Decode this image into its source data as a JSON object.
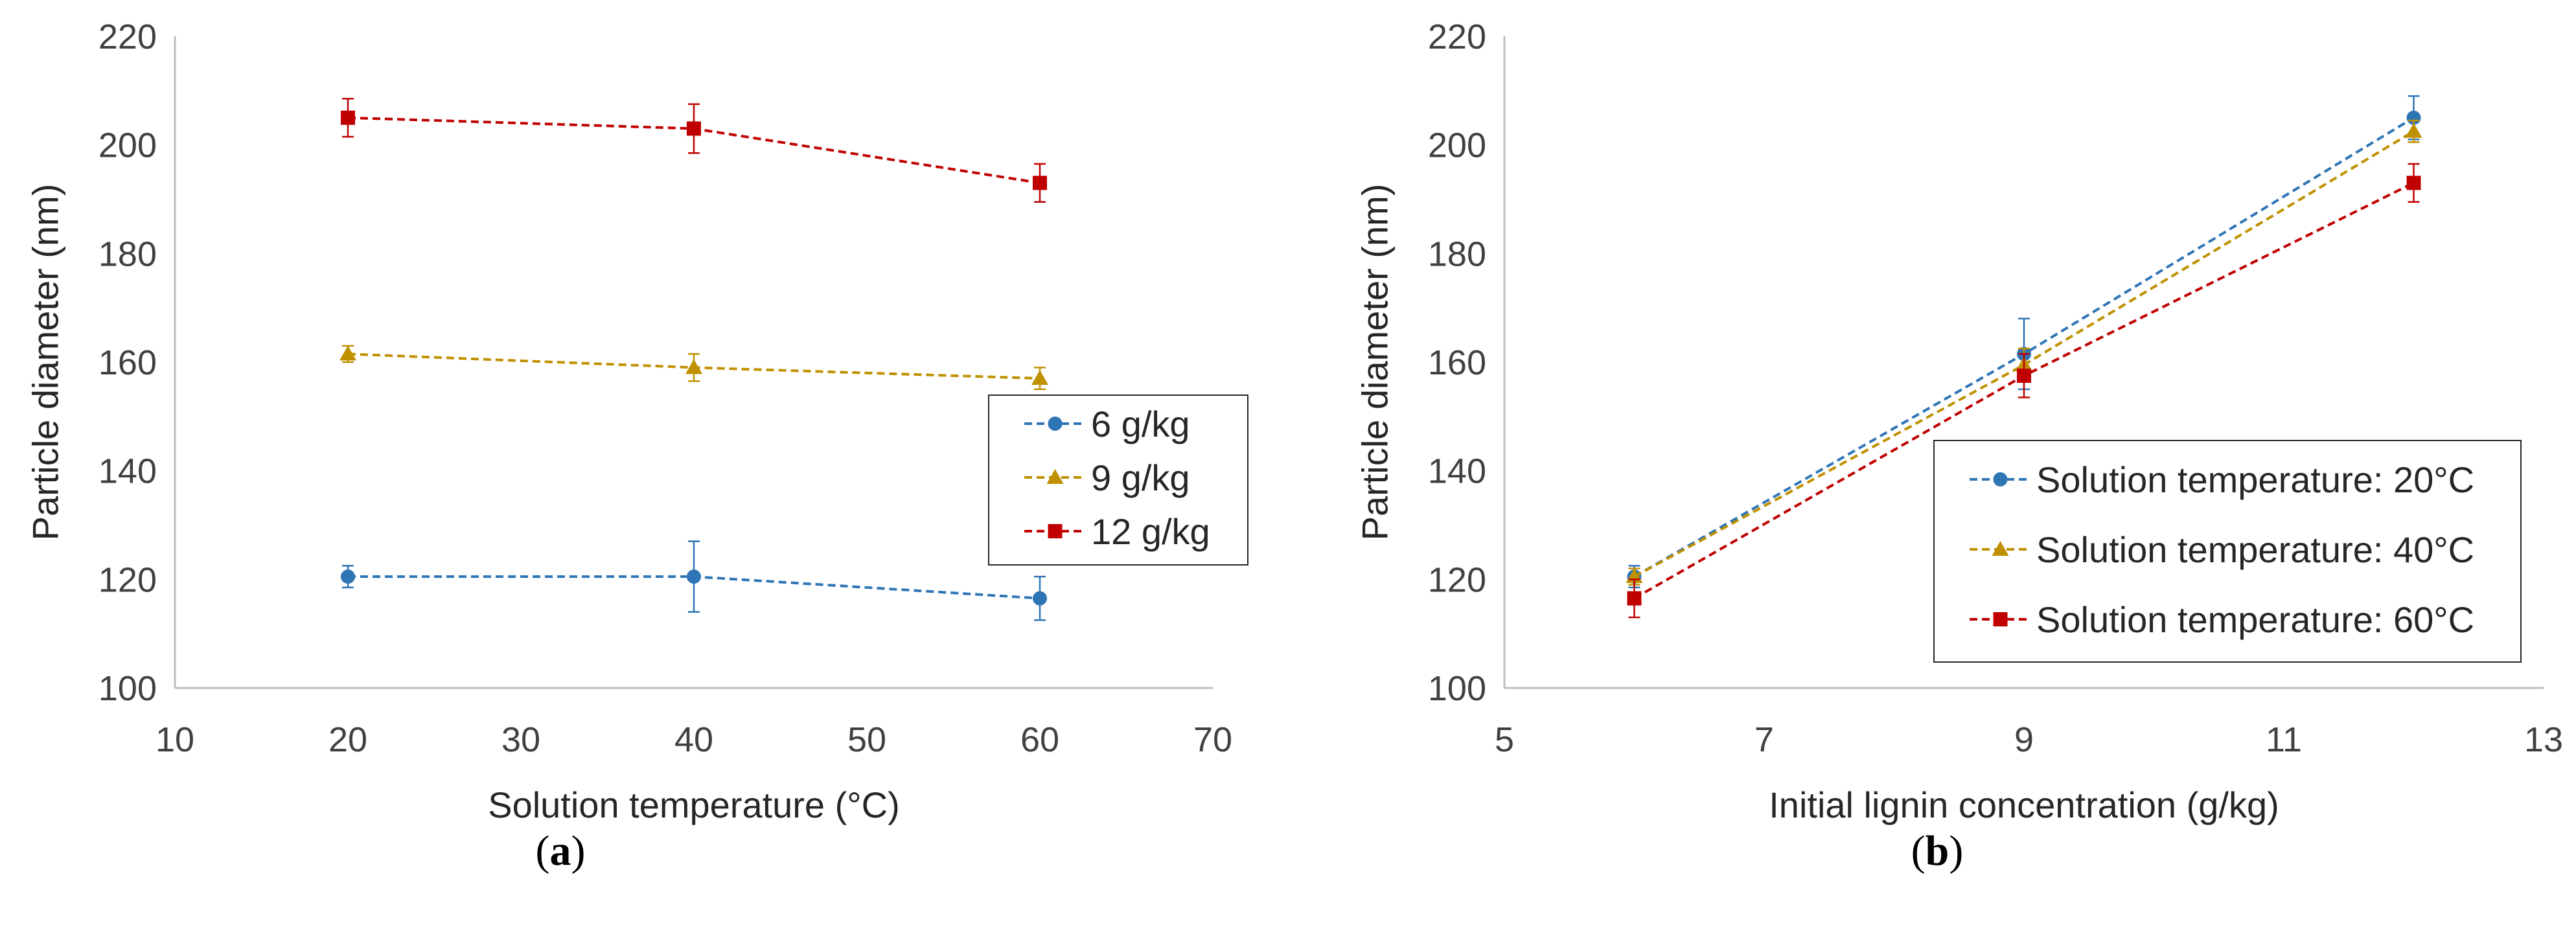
{
  "chart_data": [
    {
      "type": "line",
      "xlabel": "Solution temperature (°C)",
      "ylabel": "Particle diameter (nm)",
      "xlim": [
        10,
        70
      ],
      "ylim": [
        100,
        220
      ],
      "xticks": [
        10,
        20,
        30,
        40,
        50,
        60,
        70
      ],
      "yticks": [
        100,
        120,
        140,
        160,
        180,
        200,
        220
      ],
      "x": [
        20,
        40,
        60
      ],
      "legend_position": "right",
      "caption_letter": "a",
      "series": [
        {
          "name": "6 g/kg",
          "color": "#2E75B6",
          "marker": "circle",
          "values": [
            120.5,
            120.5,
            116.5
          ],
          "errors": [
            2,
            6.5,
            4
          ]
        },
        {
          "name": "9 g/kg",
          "color": "#BF9000",
          "marker": "triangle",
          "values": [
            161.5,
            159,
            157
          ],
          "errors": [
            1.5,
            2.5,
            2
          ]
        },
        {
          "name": "12 g/kg",
          "color": "#C00000",
          "marker": "square",
          "values": [
            205,
            203,
            193
          ],
          "errors": [
            3.5,
            4.5,
            3.5
          ]
        }
      ]
    },
    {
      "type": "line",
      "xlabel": "Initial lignin concentration (g/kg)",
      "ylabel": "Particle diameter (nm)",
      "xlim": [
        5,
        13
      ],
      "ylim": [
        100,
        220
      ],
      "xticks": [
        5,
        7,
        9,
        11,
        13
      ],
      "yticks": [
        100,
        120,
        140,
        160,
        180,
        200,
        220
      ],
      "x": [
        6,
        9,
        12
      ],
      "legend_position": "lower-right",
      "caption_letter": "b",
      "series": [
        {
          "name": "Solution temperature: 20°C",
          "color": "#2E75B6",
          "marker": "circle",
          "values": [
            120.5,
            161.5,
            205
          ],
          "errors": [
            2,
            6.5,
            4
          ]
        },
        {
          "name": "Solution temperature: 40°C",
          "color": "#BF9000",
          "marker": "triangle",
          "values": [
            120.5,
            159.5,
            202.5
          ],
          "errors": [
            1.5,
            3,
            2
          ]
        },
        {
          "name": "Solution temperature: 60°C",
          "color": "#C00000",
          "marker": "square",
          "values": [
            116.5,
            157.5,
            193
          ],
          "errors": [
            3.5,
            4,
            3.5
          ]
        }
      ]
    }
  ]
}
